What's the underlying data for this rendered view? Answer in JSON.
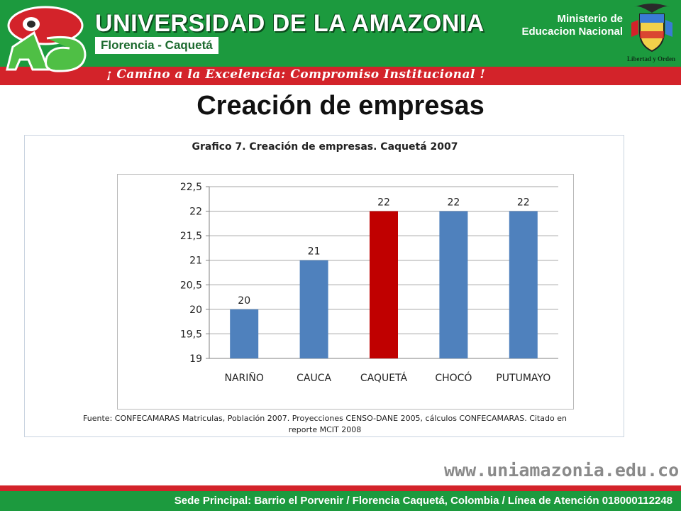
{
  "header": {
    "university_name": "UNIVERSIDAD DE LA AMAZONIA",
    "city": "Florencia - Caquetá",
    "slogan": "¡ Camino a la Excelencia: Compromiso Institucional !",
    "ministry": "Ministerio de Educacion Nacional",
    "motto": "Libertad y Orden"
  },
  "slide": {
    "title": "Creación de empresas"
  },
  "chart_data": {
    "type": "bar",
    "title": "Grafico 7.  Creación de empresas.  Caquetá 2007",
    "categories": [
      "NARIÑO",
      "CAUCA",
      "CAQUETÁ",
      "CHOCÓ",
      "PUTUMAYO"
    ],
    "values": [
      20,
      21,
      22,
      22,
      22
    ],
    "data_labels": [
      "20",
      "21",
      "22",
      "22",
      "22"
    ],
    "colors": [
      "#4f81bd",
      "#4f81bd",
      "#c00000",
      "#4f81bd",
      "#4f81bd"
    ],
    "ylim": [
      19,
      22.5
    ],
    "y_ticks": [
      "19",
      "19,5",
      "20",
      "20,5",
      "21",
      "21,5",
      "22",
      "22,5"
    ],
    "grid": true,
    "xlabel": "",
    "ylabel": "",
    "source": [
      "Fuente: CONFECAMARAS Matriculas, Población 2007. Proyecciones CENSO-DANE 2005, cálculos CONFECAMARAS.  Citado en",
      "reporte MCIT 2008"
    ]
  },
  "footer": {
    "website": "www.uniamazonia.edu.co",
    "address": "Sede Principal: Barrio el Porvenir  /  Florencia Caquetá, Colombia  /  Línea de Atención 018000112248"
  }
}
